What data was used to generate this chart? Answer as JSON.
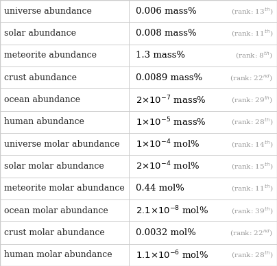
{
  "rows": [
    {
      "label": "universe abundance",
      "rank_text": "(rank: 13",
      "rank_sup": "th",
      "rank_end": ")"
    },
    {
      "label": "solar abundance",
      "rank_text": "(rank: 11",
      "rank_sup": "th",
      "rank_end": ")"
    },
    {
      "label": "meteorite abundance",
      "rank_text": "(rank: 8",
      "rank_sup": "th",
      "rank_end": ")"
    },
    {
      "label": "crust abundance",
      "rank_text": "(rank: 22",
      "rank_sup": "nd",
      "rank_end": ")"
    },
    {
      "label": "ocean abundance",
      "rank_text": "(rank: 29",
      "rank_sup": "th",
      "rank_end": ")"
    },
    {
      "label": "human abundance",
      "rank_text": "(rank: 28",
      "rank_sup": "th",
      "rank_end": ")"
    },
    {
      "label": "universe molar abundance",
      "rank_text": "(rank: 14",
      "rank_sup": "th",
      "rank_end": ")"
    },
    {
      "label": "solar molar abundance",
      "rank_text": "(rank: 15",
      "rank_sup": "th",
      "rank_end": ")"
    },
    {
      "label": "meteorite molar abundance",
      "rank_text": "(rank: 11",
      "rank_sup": "th",
      "rank_end": ")"
    },
    {
      "label": "ocean molar abundance",
      "rank_text": "(rank: 39",
      "rank_sup": "th",
      "rank_end": ")"
    },
    {
      "label": "crust molar abundance",
      "rank_text": "(rank: 22",
      "rank_sup": "nd",
      "rank_end": ")"
    },
    {
      "label": "human molar abundance",
      "rank_text": "(rank: 28",
      "rank_sup": "th",
      "rank_end": ")"
    }
  ],
  "value_main": [
    "0.006 mass%",
    "0.008 mass%",
    "1.3 mass%",
    "0.0089 mass%",
    "2×10⁻⁷ mass%",
    "1×10⁻⁵ mass%",
    "1×10⁻⁴ mol%",
    "2×10⁻⁴ mol%",
    "0.44 mol%",
    "2.1×10⁻⁸ mol%",
    "0.0032 mol%",
    "1.1×10⁻⁶ mol%"
  ],
  "value_mathtext": [
    "0.006 mass%",
    "0.008 mass%",
    "1.3 mass%",
    "0.0089 mass%",
    "$2{\\times}10^{-7}$ mass%",
    "$1{\\times}10^{-5}$ mass%",
    "$1{\\times}10^{-4}$ mol%",
    "$2{\\times}10^{-4}$ mol%",
    "0.44 mol%",
    "$2.1{\\times}10^{-8}$ mol%",
    "0.0032 mol%",
    "$1.1{\\times}10^{-6}$ mol%"
  ],
  "rank_mathtext": [
    "(rank: 13$^{th}$)",
    "(rank: 11$^{th}$)",
    "(rank: 8$^{th}$)",
    "(rank: 22$^{nd}$)",
    "(rank: 29$^{th}$)",
    "(rank: 28$^{th}$)",
    "(rank: 14$^{th}$)",
    "(rank: 15$^{th}$)",
    "(rank: 11$^{th}$)",
    "(rank: 39$^{th}$)",
    "(rank: 22$^{nd}$)",
    "(rank: 28$^{th}$)"
  ],
  "bg_color": "#ffffff",
  "border_color": "#cccccc",
  "label_font_size": 9.0,
  "value_font_size": 9.5,
  "rank_font_size": 7.5,
  "label_color": "#222222",
  "value_color": "#000000",
  "rank_color": "#999999",
  "col_split": 0.465
}
